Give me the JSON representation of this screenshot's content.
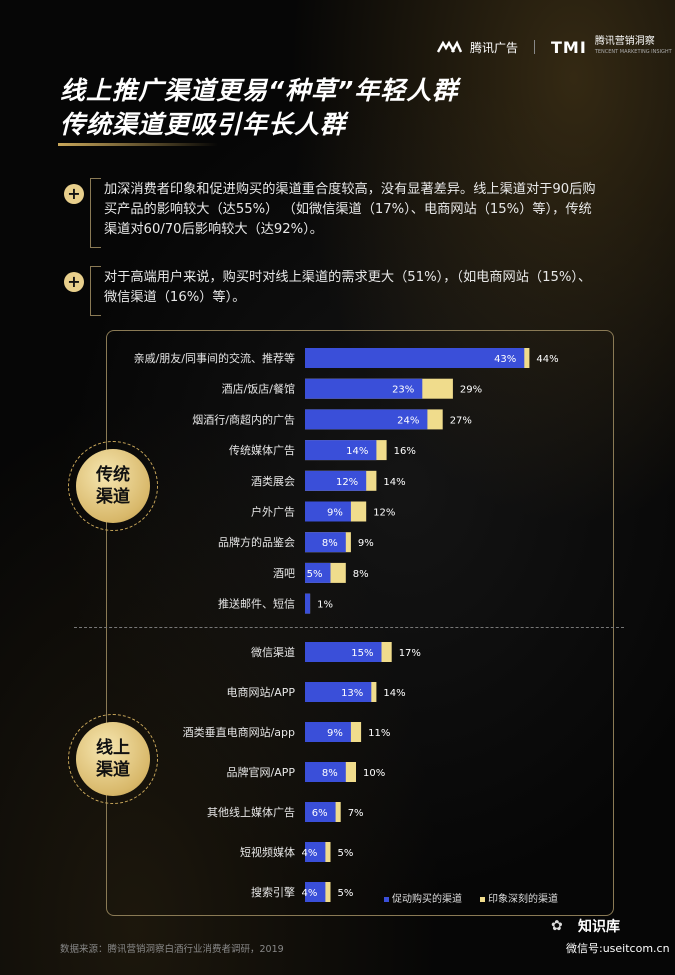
{
  "header": {
    "brand1": "腾讯广告",
    "brand2_mark": "TMI",
    "brand2": "腾讯营销洞察",
    "brand2_sub": "TENCENT MARKETING INSIGHT"
  },
  "title": {
    "line1": "线上推广渠道更易“种草”年轻人群",
    "line2": "传统渠道更吸引年长人群"
  },
  "bullets": [
    {
      "icon": "plus-icon",
      "text": "加深消费者印象和促进购买的渠道重合度较高，没有显著差异。线上渠道对于90后购买产品的影响较大（达55%）  （如微信渠道（17%）、电商网站（15%）等），传统渠道对60/70后影响较大（达92%）。"
    },
    {
      "icon": "plus-icon",
      "text": "对于高端用户来说，购买时对线上渠道的需求更大（51%），（如电商网站（15%）、微信渠道（16%）等）。"
    }
  ],
  "groups": [
    {
      "label_line1": "传统",
      "label_line2": "渠道"
    },
    {
      "label_line1": "线上",
      "label_line2": "渠道"
    }
  ],
  "chart_data": {
    "type": "bar",
    "orientation": "horizontal",
    "stacked": "overlay",
    "categories": [
      "亲戚/朋友/同事间的交流、推荐等",
      "酒店/饭店/餐馆",
      "烟酒行/商超内的广告",
      "传统媒体广告",
      "酒类展会",
      "户外广告",
      "品牌方的品鉴会",
      "酒吧",
      "推送邮件、短信",
      "微信渠道",
      "电商网站/APP",
      "酒类垂直电商网站/app",
      "品牌官网/APP",
      "其他线上媒体广告",
      "短视频媒体",
      "搜索引擎"
    ],
    "category_groups": [
      "传统渠道",
      "传统渠道",
      "传统渠道",
      "传统渠道",
      "传统渠道",
      "传统渠道",
      "传统渠道",
      "传统渠道",
      "传统渠道",
      "线上渠道",
      "线上渠道",
      "线上渠道",
      "线上渠道",
      "线上渠道",
      "线上渠道",
      "线上渠道"
    ],
    "series": [
      {
        "name": "促动购买的渠道",
        "color": "#3a4fd9",
        "values": [
          43,
          23,
          24,
          14,
          12,
          9,
          8,
          5,
          1,
          15,
          13,
          9,
          8,
          6,
          4,
          4
        ],
        "labels": [
          "43%",
          "23%",
          "24%",
          "14%",
          "12%",
          "9%",
          "8%",
          "5%",
          "",
          "15%",
          "13%",
          "9%",
          "8%",
          "6%",
          "4%",
          "4%"
        ]
      },
      {
        "name": "印象深刻的渠道",
        "color": "#f0dc8c",
        "values": [
          44,
          29,
          27,
          16,
          14,
          12,
          9,
          8,
          1,
          17,
          14,
          11,
          10,
          7,
          5,
          5
        ],
        "labels": [
          "44%",
          "29%",
          "27%",
          "16%",
          "14%",
          "12%",
          "9%",
          "8%",
          "1%",
          "17%",
          "14%",
          "11%",
          "10%",
          "7%",
          "5%",
          "5%"
        ]
      }
    ],
    "legend_position": "bottom-right"
  },
  "footer": {
    "source": "数据来源：腾讯营销洞察白酒行业消费者调研，2019",
    "watermark": "知识库",
    "watermark_sub": "微信号:useitcom.cn"
  }
}
